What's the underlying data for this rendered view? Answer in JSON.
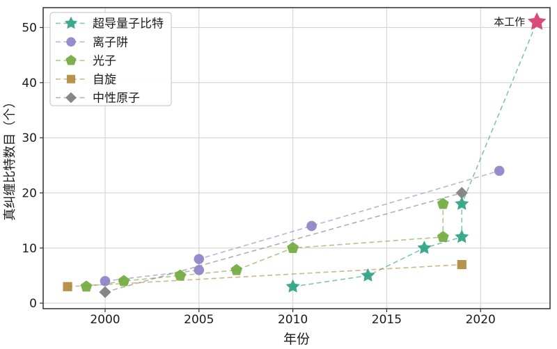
{
  "chart_data": {
    "type": "line",
    "title": "",
    "xlabel": "年份",
    "ylabel": "真纠缠比特数目（个）",
    "xlim": [
      1996.7,
      2023.7
    ],
    "ylim": [
      -1.0,
      53.6
    ],
    "xticks": [
      2000,
      2005,
      2010,
      2015,
      2020
    ],
    "yticks": [
      0,
      10,
      20,
      30,
      40,
      50
    ],
    "grid": true,
    "legend_position": "upper-left",
    "series": [
      {
        "key": "superconducting",
        "name": "超导量子比特",
        "marker": "star",
        "color": "#2fa283",
        "highlight_last": true,
        "points": [
          [
            2010,
            3
          ],
          [
            2014,
            5
          ],
          [
            2017,
            10
          ],
          [
            2019,
            12
          ],
          [
            2019,
            18
          ],
          [
            2023,
            51
          ]
        ]
      },
      {
        "key": "ion-trap",
        "name": "离子阱",
        "marker": "circle",
        "color": "#8d83c6",
        "points": [
          [
            2000,
            4
          ],
          [
            2005,
            6
          ],
          [
            2005,
            8
          ],
          [
            2011,
            14
          ],
          [
            2021,
            24
          ]
        ]
      },
      {
        "key": "photon",
        "name": "光子",
        "marker": "pentagon",
        "color": "#71aa3e",
        "points": [
          [
            1999,
            3
          ],
          [
            2001,
            4
          ],
          [
            2004,
            5
          ],
          [
            2007,
            6
          ],
          [
            2010,
            10
          ],
          [
            2018,
            12
          ],
          [
            2018,
            18
          ]
        ]
      },
      {
        "key": "spin",
        "name": "自旋",
        "marker": "square",
        "color": "#b28a3d",
        "points": [
          [
            1998,
            3
          ],
          [
            2019,
            7
          ]
        ]
      },
      {
        "key": "neutral-atom",
        "name": "中性原子",
        "marker": "diamond",
        "color": "#7e7e7e",
        "points": [
          [
            2000,
            2
          ],
          [
            2019,
            20
          ]
        ]
      }
    ],
    "annotation": {
      "text": "本工作",
      "x": 2023,
      "y": 51,
      "color": "#d63c6d",
      "marker": "star"
    }
  },
  "colors": {
    "background": "#ffffff",
    "grid": "#d4d4d4",
    "spine": "#2e2e2e",
    "text": "#1a1a1a",
    "legend_border": "#cccccc",
    "highlight": "#d63c6d"
  }
}
